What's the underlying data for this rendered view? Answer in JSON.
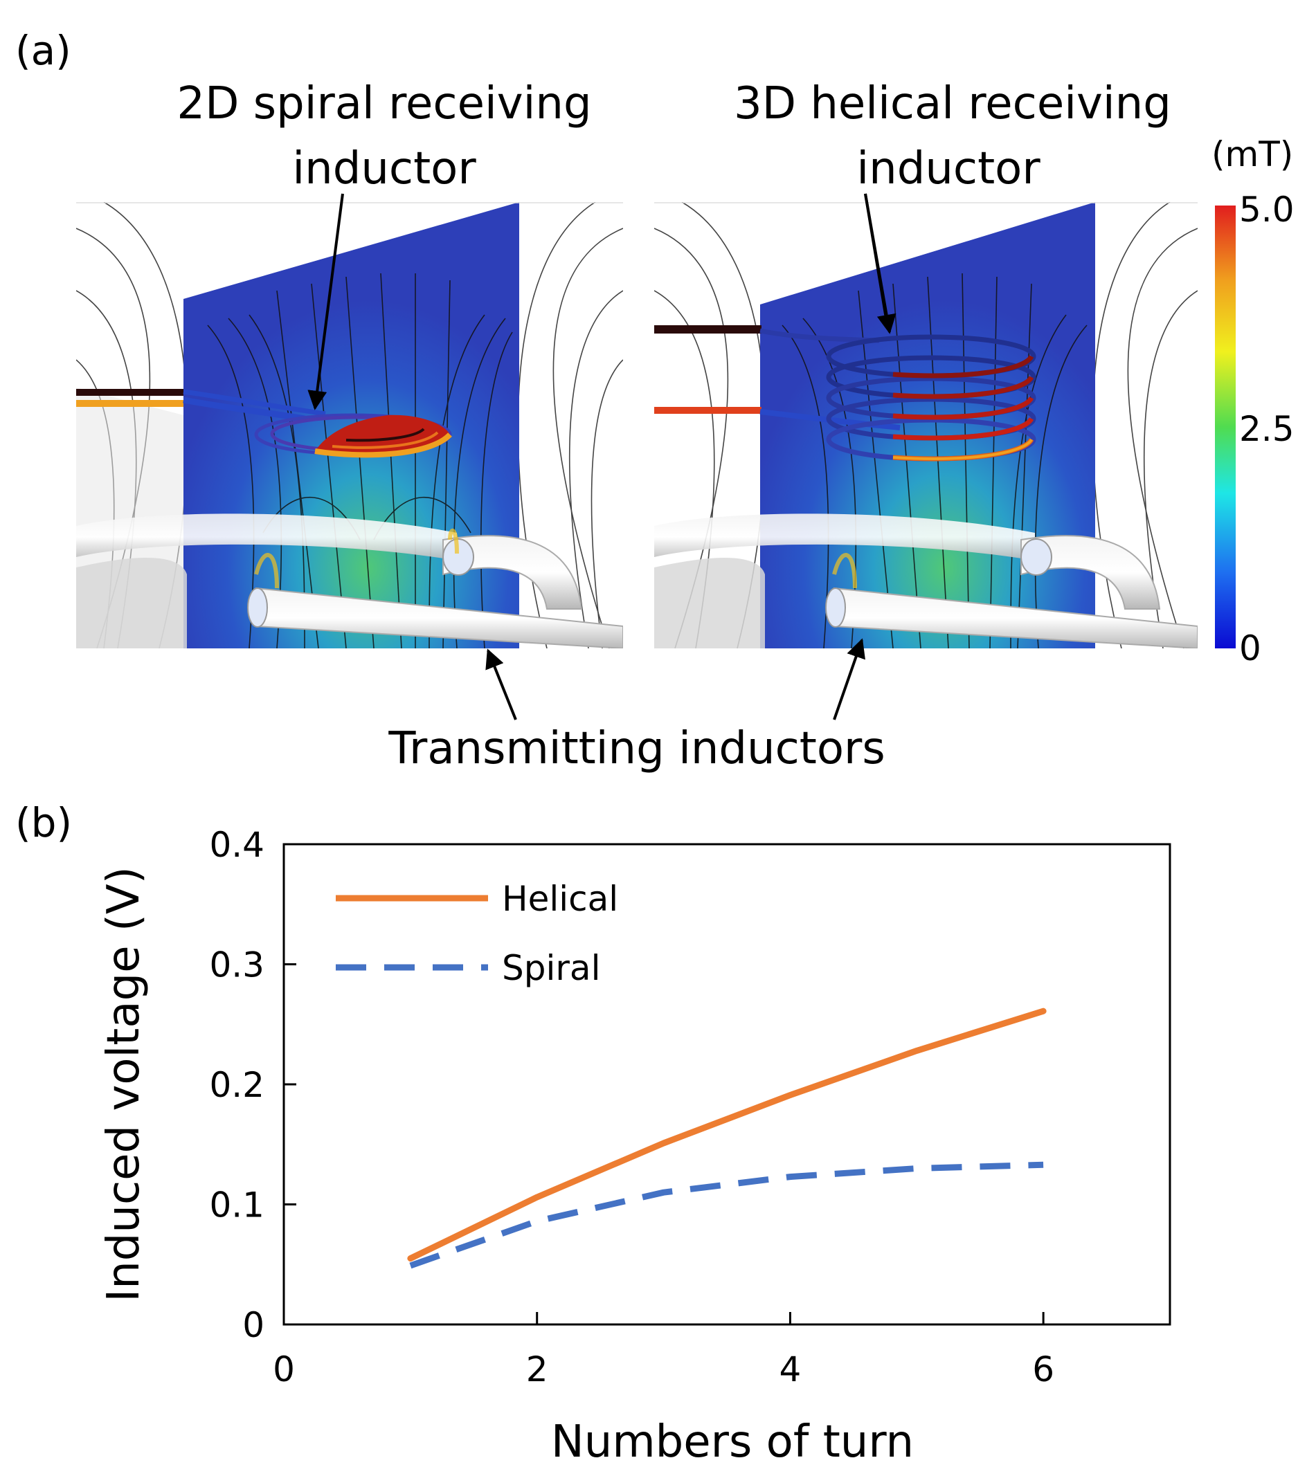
{
  "panel_a": {
    "label": "(a)",
    "left_title_line1": "2D spiral receiving",
    "left_title_line2": "inductor",
    "right_title_line1": "3D helical receiving",
    "right_title_line2": "inductor",
    "bottom_label": "Transmitting inductors",
    "colorbar": {
      "unit": "(mT)",
      "max_label": "5.0",
      "mid_label": "2.5",
      "min_label": "0",
      "colors": [
        "#0a0ad2",
        "#1e6ef0",
        "#1ee6e6",
        "#50dc50",
        "#f0f01e",
        "#f0a01e",
        "#e11e1e"
      ]
    }
  },
  "panel_b": {
    "label": "(b)"
  },
  "chart_data": {
    "type": "line",
    "xlabel": "Numbers of turn",
    "ylabel": "Induced voltage (V)",
    "xlim": [
      0,
      7
    ],
    "ylim": [
      0,
      0.4
    ],
    "xticks": [
      0,
      2,
      4,
      6
    ],
    "xtick_labels": [
      "0",
      "2",
      "4",
      "6"
    ],
    "yticks": [
      0,
      0.1,
      0.2,
      0.3,
      0.4
    ],
    "ytick_labels": [
      "0",
      "0.1",
      "0.2",
      "0.3",
      "0.4"
    ],
    "legend_position": "top-left",
    "series": [
      {
        "name": "Helical",
        "color": "#ed7d31",
        "dash": "solid",
        "x": [
          1,
          2,
          3,
          4,
          5,
          6
        ],
        "y": [
          0.055,
          0.106,
          0.151,
          0.191,
          0.228,
          0.261
        ]
      },
      {
        "name": "Spiral",
        "color": "#4472c4",
        "dash": "dashed",
        "x": [
          1,
          2,
          3,
          4,
          5,
          6
        ],
        "y": [
          0.049,
          0.086,
          0.11,
          0.123,
          0.13,
          0.133
        ]
      }
    ]
  }
}
